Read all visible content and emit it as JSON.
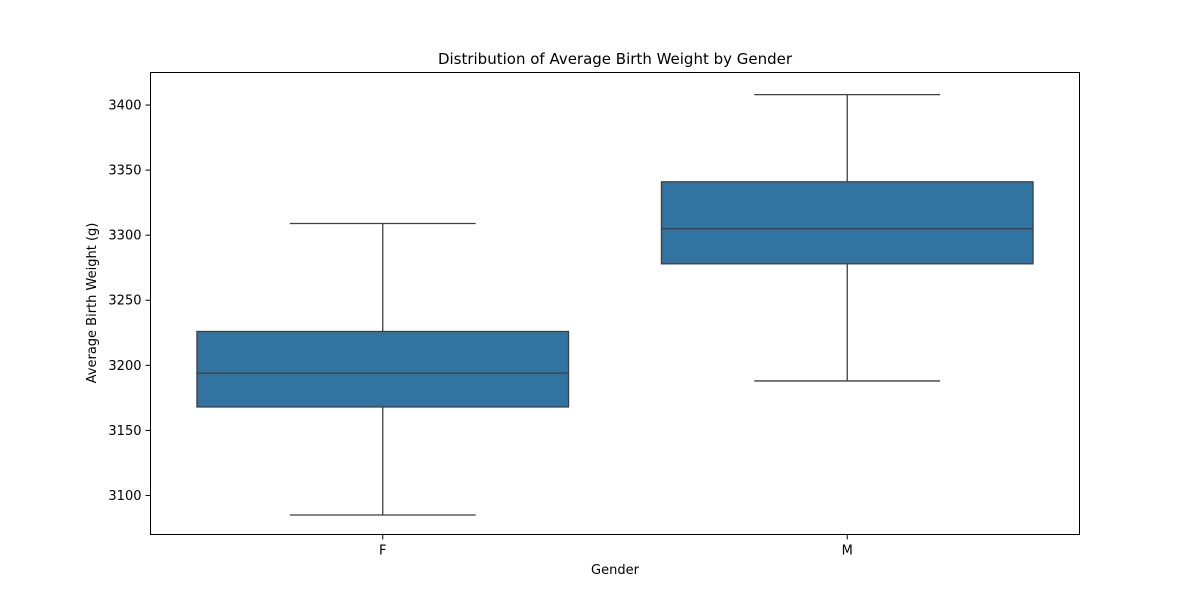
{
  "chart_data": {
    "type": "box",
    "title": "Distribution of Average Birth Weight by Gender",
    "xlabel": "Gender",
    "ylabel": "Average Birth Weight (g)",
    "categories": [
      "F",
      "M"
    ],
    "boxes": [
      {
        "category": "F",
        "whisker_low": 3085,
        "q1": 3168,
        "median": 3194,
        "q3": 3226,
        "whisker_high": 3309
      },
      {
        "category": "M",
        "whisker_low": 3188,
        "q1": 3278,
        "median": 3305,
        "q3": 3341,
        "whisker_high": 3408
      }
    ],
    "ylim": [
      3070,
      3425
    ],
    "yticks": [
      3100,
      3150,
      3200,
      3250,
      3300,
      3350,
      3400
    ],
    "box_color": "#3274a1",
    "line_color": "#3f3f3f",
    "grid": false,
    "legend": "none"
  }
}
